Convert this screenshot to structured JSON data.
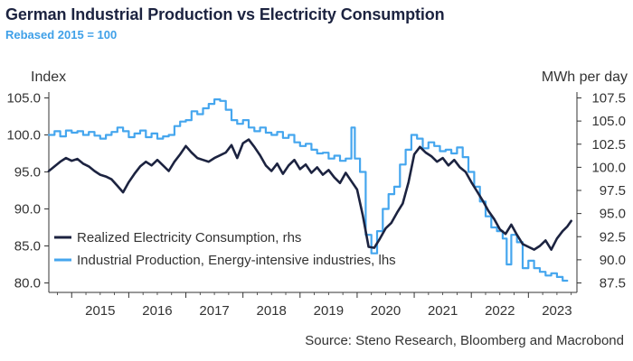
{
  "title": "German Industrial Production vs Electricity Consumption",
  "subtitle": "Rebased 2015 = 100",
  "source": "Source: Steno Research, Bloomberg and Macrobond",
  "colors": {
    "electricity": "#1c2340",
    "industrial": "#45a6ee",
    "axis": "#333333",
    "title": "#1c2340",
    "subtitle": "#3fa0e8"
  },
  "chart_data": {
    "type": "line",
    "title": "German Industrial Production vs Electricity Consumption",
    "subtitle": "Rebased 2015 = 100",
    "left_axis": {
      "label": "Index",
      "range": [
        80,
        105
      ],
      "ticks": [
        "80.0",
        "85.0",
        "90.0",
        "95.0",
        "100.0",
        "105.0"
      ]
    },
    "right_axis": {
      "label": "MWh per day",
      "range": [
        87.5,
        107.5
      ],
      "ticks": [
        "87.5",
        "90.0",
        "92.5",
        "95.0",
        "97.5",
        "100.0",
        "102.5",
        "105.0",
        "107.5"
      ]
    },
    "x_axis": {
      "range": [
        2014.6,
        2023.85
      ],
      "ticks": [
        "2015",
        "2016",
        "2017",
        "2018",
        "2019",
        "2020",
        "2021",
        "2022",
        "2023"
      ]
    },
    "legend": {
      "placement": "bottom-left",
      "entries": [
        "Realized Electricity Consumption, rhs",
        "Industrial Production, Energy-intensive industries, lhs"
      ]
    },
    "series": [
      {
        "name": "Industrial Production, Energy-intensive industries, lhs",
        "axis": "left",
        "style": "step",
        "points": [
          [
            2014.6,
            100.0
          ],
          [
            2014.7,
            100.5
          ],
          [
            2014.8,
            99.8
          ],
          [
            2014.9,
            100.6
          ],
          [
            2015.0,
            100.3
          ],
          [
            2015.1,
            100.5
          ],
          [
            2015.2,
            100.0
          ],
          [
            2015.3,
            100.4
          ],
          [
            2015.4,
            99.9
          ],
          [
            2015.5,
            99.5
          ],
          [
            2015.6,
            100.0
          ],
          [
            2015.7,
            100.4
          ],
          [
            2015.8,
            101.0
          ],
          [
            2015.9,
            100.5
          ],
          [
            2016.0,
            99.7
          ],
          [
            2016.1,
            100.2
          ],
          [
            2016.2,
            100.6
          ],
          [
            2016.3,
            99.7
          ],
          [
            2016.4,
            100.2
          ],
          [
            2016.5,
            99.5
          ],
          [
            2016.6,
            99.8
          ],
          [
            2016.7,
            100.0
          ],
          [
            2016.8,
            101.2
          ],
          [
            2016.9,
            101.8
          ],
          [
            2017.0,
            102.0
          ],
          [
            2017.1,
            103.2
          ],
          [
            2017.2,
            102.8
          ],
          [
            2017.3,
            103.6
          ],
          [
            2017.4,
            104.2
          ],
          [
            2017.5,
            104.8
          ],
          [
            2017.6,
            104.6
          ],
          [
            2017.7,
            103.4
          ],
          [
            2017.8,
            102.0
          ],
          [
            2017.9,
            101.5
          ],
          [
            2018.0,
            102.0
          ],
          [
            2018.1,
            101.0
          ],
          [
            2018.2,
            100.5
          ],
          [
            2018.3,
            101.0
          ],
          [
            2018.4,
            100.3
          ],
          [
            2018.5,
            100.0
          ],
          [
            2018.6,
            100.4
          ],
          [
            2018.7,
            99.6
          ],
          [
            2018.8,
            100.0
          ],
          [
            2018.9,
            99.0
          ],
          [
            2019.0,
            98.5
          ],
          [
            2019.1,
            98.8
          ],
          [
            2019.2,
            98.0
          ],
          [
            2019.3,
            97.5
          ],
          [
            2019.4,
            97.6
          ],
          [
            2019.5,
            96.8
          ],
          [
            2019.6,
            97.2
          ],
          [
            2019.7,
            96.5
          ],
          [
            2019.8,
            96.8
          ],
          [
            2019.9,
            101.0
          ],
          [
            2019.96,
            96.8
          ],
          [
            2020.05,
            95.0
          ],
          [
            2020.15,
            86.5
          ],
          [
            2020.25,
            84.0
          ],
          [
            2020.35,
            87.0
          ],
          [
            2020.45,
            90.0
          ],
          [
            2020.55,
            92.0
          ],
          [
            2020.65,
            93.0
          ],
          [
            2020.75,
            96.0
          ],
          [
            2020.85,
            98.0
          ],
          [
            2020.95,
            100.0
          ],
          [
            2021.05,
            99.5
          ],
          [
            2021.15,
            98.2
          ],
          [
            2021.25,
            99.0
          ],
          [
            2021.35,
            98.5
          ],
          [
            2021.45,
            97.8
          ],
          [
            2021.55,
            98.0
          ],
          [
            2021.65,
            97.5
          ],
          [
            2021.75,
            98.3
          ],
          [
            2021.85,
            97.0
          ],
          [
            2021.95,
            95.0
          ],
          [
            2022.05,
            93.0
          ],
          [
            2022.15,
            91.0
          ],
          [
            2022.25,
            89.0
          ],
          [
            2022.35,
            87.5
          ],
          [
            2022.45,
            87.0
          ],
          [
            2022.55,
            86.0
          ],
          [
            2022.62,
            82.5
          ],
          [
            2022.7,
            86.5
          ],
          [
            2022.8,
            85.5
          ],
          [
            2022.9,
            82.0
          ],
          [
            2023.0,
            83.0
          ],
          [
            2023.1,
            82.0
          ],
          [
            2023.2,
            81.5
          ],
          [
            2023.3,
            81.0
          ],
          [
            2023.4,
            81.3
          ],
          [
            2023.5,
            80.8
          ],
          [
            2023.6,
            80.3
          ],
          [
            2023.68,
            80.3
          ]
        ]
      },
      {
        "name": "Realized Electricity Consumption, rhs",
        "axis": "right",
        "style": "line",
        "points": [
          [
            2014.6,
            99.6
          ],
          [
            2014.7,
            100.1
          ],
          [
            2014.8,
            100.6
          ],
          [
            2014.9,
            101.0
          ],
          [
            2015.0,
            100.7
          ],
          [
            2015.1,
            100.9
          ],
          [
            2015.2,
            100.4
          ],
          [
            2015.3,
            100.1
          ],
          [
            2015.4,
            99.6
          ],
          [
            2015.5,
            99.2
          ],
          [
            2015.6,
            99.0
          ],
          [
            2015.7,
            98.7
          ],
          [
            2015.8,
            98.0
          ],
          [
            2015.9,
            97.3
          ],
          [
            2016.0,
            98.4
          ],
          [
            2016.1,
            99.3
          ],
          [
            2016.2,
            100.1
          ],
          [
            2016.3,
            100.6
          ],
          [
            2016.4,
            100.2
          ],
          [
            2016.5,
            100.8
          ],
          [
            2016.6,
            100.2
          ],
          [
            2016.7,
            99.6
          ],
          [
            2016.8,
            100.6
          ],
          [
            2016.9,
            101.4
          ],
          [
            2017.0,
            102.3
          ],
          [
            2017.1,
            101.6
          ],
          [
            2017.2,
            101.0
          ],
          [
            2017.3,
            100.8
          ],
          [
            2017.4,
            100.6
          ],
          [
            2017.5,
            101.0
          ],
          [
            2017.6,
            101.3
          ],
          [
            2017.7,
            101.6
          ],
          [
            2017.8,
            102.4
          ],
          [
            2017.9,
            101.0
          ],
          [
            2018.0,
            102.6
          ],
          [
            2018.1,
            103.0
          ],
          [
            2018.2,
            102.2
          ],
          [
            2018.3,
            101.3
          ],
          [
            2018.4,
            100.2
          ],
          [
            2018.5,
            99.6
          ],
          [
            2018.6,
            100.4
          ],
          [
            2018.7,
            99.3
          ],
          [
            2018.8,
            100.2
          ],
          [
            2018.9,
            100.8
          ],
          [
            2019.0,
            99.8
          ],
          [
            2019.1,
            100.3
          ],
          [
            2019.2,
            99.4
          ],
          [
            2019.3,
            100.0
          ],
          [
            2019.4,
            99.2
          ],
          [
            2019.5,
            99.7
          ],
          [
            2019.6,
            98.9
          ],
          [
            2019.7,
            98.3
          ],
          [
            2019.8,
            99.4
          ],
          [
            2019.9,
            98.5
          ],
          [
            2020.0,
            97.6
          ],
          [
            2020.1,
            94.8
          ],
          [
            2020.2,
            91.4
          ],
          [
            2020.3,
            91.3
          ],
          [
            2020.4,
            92.3
          ],
          [
            2020.5,
            93.4
          ],
          [
            2020.6,
            94.0
          ],
          [
            2020.7,
            95.1
          ],
          [
            2020.8,
            96.1
          ],
          [
            2020.9,
            98.4
          ],
          [
            2021.0,
            101.4
          ],
          [
            2021.1,
            102.2
          ],
          [
            2021.2,
            101.6
          ],
          [
            2021.3,
            101.2
          ],
          [
            2021.4,
            100.6
          ],
          [
            2021.5,
            101.0
          ],
          [
            2021.6,
            100.2
          ],
          [
            2021.7,
            100.8
          ],
          [
            2021.8,
            100.0
          ],
          [
            2021.9,
            99.5
          ],
          [
            2022.0,
            98.4
          ],
          [
            2022.1,
            97.4
          ],
          [
            2022.2,
            96.4
          ],
          [
            2022.3,
            95.3
          ],
          [
            2022.4,
            94.4
          ],
          [
            2022.5,
            93.3
          ],
          [
            2022.6,
            92.8
          ],
          [
            2022.7,
            93.8
          ],
          [
            2022.8,
            92.7
          ],
          [
            2022.9,
            91.7
          ],
          [
            2023.0,
            91.4
          ],
          [
            2023.1,
            91.1
          ],
          [
            2023.2,
            91.5
          ],
          [
            2023.3,
            92.1
          ],
          [
            2023.4,
            91.1
          ],
          [
            2023.5,
            92.3
          ],
          [
            2023.6,
            93.1
          ],
          [
            2023.68,
            93.6
          ],
          [
            2023.75,
            94.2
          ]
        ]
      }
    ]
  }
}
